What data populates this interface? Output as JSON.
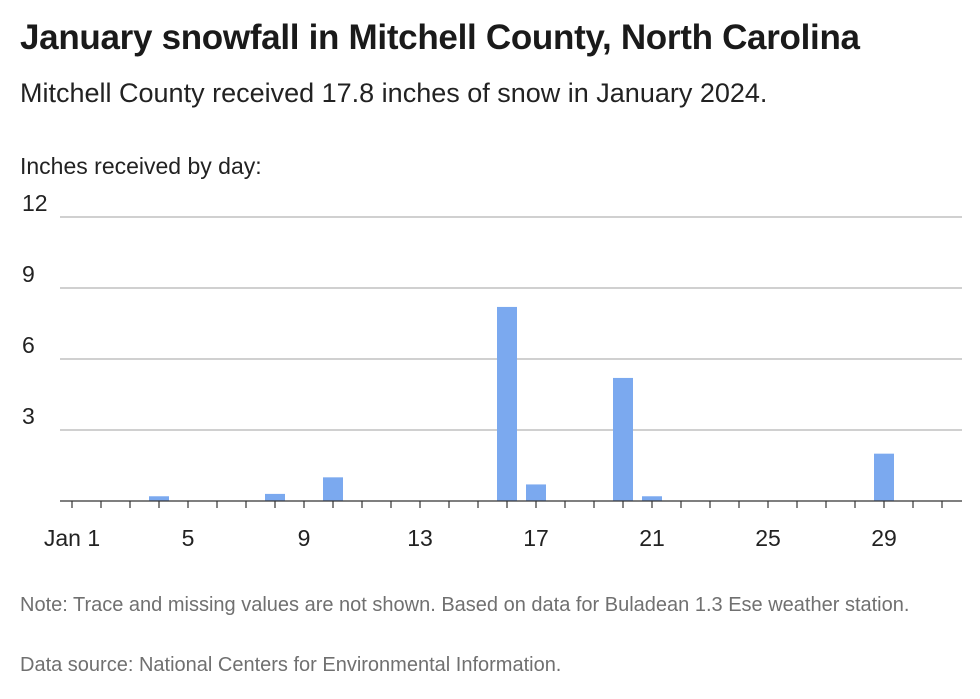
{
  "title": "January snowfall in Mitchell County, North Carolina",
  "subtitle": "Mitchell County received 17.8 inches of snow in January 2024.",
  "note": "Note: Trace and missing values are not shown. Based on data for Buladean 1.3 Ese weather station.",
  "source": "Data source: National Centers for Environmental Information.",
  "chart_data": {
    "type": "bar",
    "ylabel": "Inches received by day:",
    "xlabel": "",
    "ylim": [
      0,
      12
    ],
    "yticks": [
      3,
      6,
      9,
      12
    ],
    "x_ticks": [
      {
        "day": 1,
        "label": "Jan 1"
      },
      {
        "day": 5,
        "label": "5"
      },
      {
        "day": 9,
        "label": "9"
      },
      {
        "day": 13,
        "label": "13"
      },
      {
        "day": 17,
        "label": "17"
      },
      {
        "day": 21,
        "label": "21"
      },
      {
        "day": 25,
        "label": "25"
      },
      {
        "day": 29,
        "label": "29"
      }
    ],
    "x_range": [
      1,
      31
    ],
    "grid": true,
    "bar_color": "#7ba9ef",
    "series": [
      {
        "points": [
          {
            "day": 4,
            "value": 0.2
          },
          {
            "day": 8,
            "value": 0.3
          },
          {
            "day": 10,
            "value": 1.0
          },
          {
            "day": 16,
            "value": 8.2
          },
          {
            "day": 17,
            "value": 0.7
          },
          {
            "day": 20,
            "value": 5.2
          },
          {
            "day": 21,
            "value": 0.2
          },
          {
            "day": 29,
            "value": 2.0
          }
        ]
      }
    ]
  }
}
